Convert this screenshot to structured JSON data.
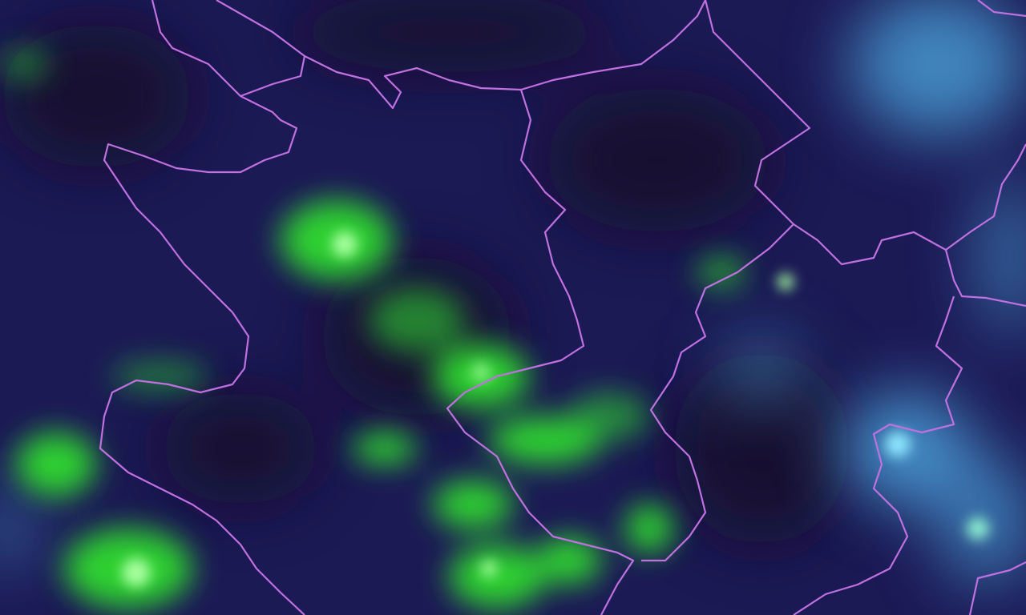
{
  "map": {
    "type": "satellite-imagery",
    "colors": {
      "background": "#1a1850",
      "dark_patch": "#140e2a",
      "vegetation_green": "#3cf03c",
      "bright_green": "#b8ffb0",
      "cloud_cyan": "#5ab8e0",
      "border": "#c070e0"
    }
  }
}
